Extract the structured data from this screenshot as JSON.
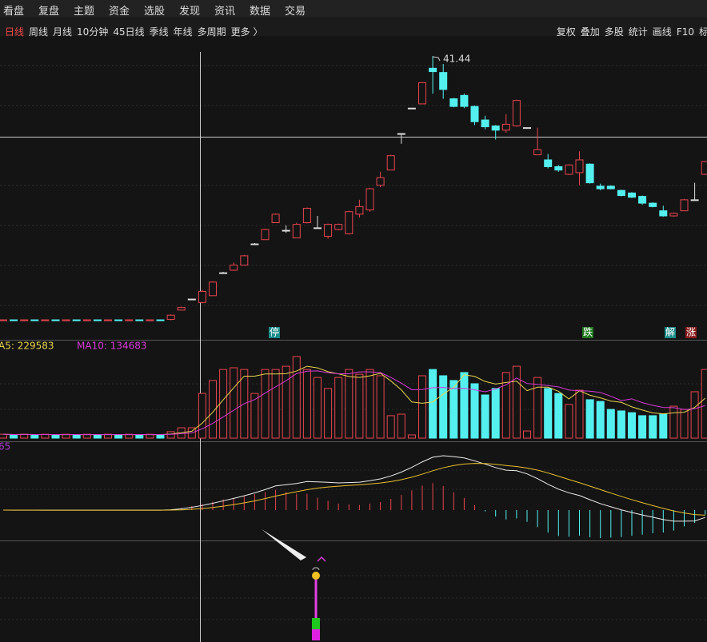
{
  "menu": [
    "看盘",
    "复盘",
    "主题",
    "资金",
    "选股",
    "发现",
    "资讯",
    "数据",
    "交易"
  ],
  "toolbar": {
    "periods": [
      "日线",
      "周线",
      "月线",
      "10分钟",
      "45日线",
      "季线",
      "年线",
      "多周期",
      "更多 〉"
    ],
    "tools": [
      "复权",
      "叠加",
      "多股",
      "统计",
      "画线",
      "F10",
      "标"
    ]
  },
  "chart_data": {
    "type": "candlestick",
    "open": [
      10.25,
      10.35,
      10.25,
      10.35,
      10.25,
      10.35,
      10.25,
      10.35,
      10.25,
      10.35,
      10.25,
      10.35,
      10.25,
      10.35,
      10.25,
      10.35,
      10.4,
      11.5,
      12.8,
      12.4,
      13.2,
      15.9,
      16.2,
      16.8,
      19.3,
      19.8,
      21.8,
      20.9,
      20.0,
      21.8,
      21.2,
      20.2,
      21.0,
      20.5,
      22.8,
      23.3,
      26.2,
      28.0,
      32.3,
      35.3,
      35.8,
      40.0,
      39.5,
      36.4,
      36.8,
      35.5,
      33.9,
      33.2,
      32.7,
      33.2,
      33.0,
      29.8,
      29.2,
      28.4,
      27.5,
      27.7,
      28.7,
      26.1,
      26.1,
      25.6,
      25.3,
      24.9,
      24.1,
      23.2,
      22.6,
      23.2,
      24.5,
      27.5
    ],
    "close": [
      10.35,
      10.25,
      10.35,
      10.25,
      10.35,
      10.25,
      10.35,
      10.25,
      10.35,
      10.25,
      10.35,
      10.25,
      10.35,
      10.25,
      10.35,
      10.25,
      10.9,
      11.8,
      12.8,
      13.7,
      14.8,
      15.9,
      16.8,
      17.9,
      19.3,
      21.0,
      22.8,
      20.9,
      21.6,
      23.5,
      21.2,
      21.6,
      21.6,
      23.1,
      23.7,
      25.8,
      27.1,
      29.7,
      32.3,
      35.3,
      38.3,
      39.6,
      37.5,
      35.5,
      35.5,
      33.7,
      33.1,
      32.7,
      33.4,
      36.2,
      33.0,
      30.4,
      28.4,
      28.0,
      28.6,
      29.2,
      26.5,
      25.8,
      25.8,
      25.0,
      24.8,
      24.1,
      23.7,
      22.6,
      22.9,
      24.5,
      24.5,
      29.0
    ],
    "high": [
      10.35,
      10.35,
      10.35,
      10.35,
      10.35,
      10.35,
      10.35,
      10.35,
      10.35,
      10.35,
      10.35,
      10.35,
      10.35,
      10.35,
      10.35,
      10.35,
      11.0,
      11.9,
      12.8,
      13.9,
      14.9,
      16.0,
      17.1,
      18.0,
      19.4,
      21.1,
      22.9,
      21.5,
      21.8,
      23.6,
      22.6,
      21.7,
      21.7,
      23.2,
      24.5,
      25.9,
      27.8,
      29.8,
      32.3,
      35.3,
      38.4,
      41.44,
      40.5,
      36.5,
      37.0,
      35.6,
      34.4,
      33.3,
      34.6,
      36.3,
      33.0,
      33.0,
      29.9,
      28.6,
      28.7,
      30.2,
      28.8,
      26.4,
      26.2,
      25.7,
      25.4,
      25.0,
      24.2,
      23.8,
      23.0,
      24.6,
      26.5,
      29.1
    ],
    "low": [
      10.25,
      10.25,
      10.25,
      10.25,
      10.25,
      10.25,
      10.25,
      10.25,
      10.25,
      10.25,
      10.25,
      10.25,
      10.25,
      10.25,
      10.25,
      10.25,
      10.3,
      11.5,
      12.8,
      12.3,
      13.2,
      15.9,
      16.1,
      16.8,
      19.3,
      19.8,
      21.8,
      20.6,
      20.0,
      21.7,
      21.1,
      19.9,
      20.9,
      20.4,
      22.4,
      23.1,
      26.0,
      28.0,
      31.1,
      35.3,
      35.8,
      37.0,
      36.4,
      35.4,
      35.3,
      33.3,
      32.8,
      31.6,
      32.4,
      33.1,
      33.0,
      29.8,
      28.2,
      27.8,
      27.4,
      26.2,
      26.4,
      25.6,
      25.7,
      24.9,
      24.7,
      23.9,
      23.6,
      22.5,
      22.5,
      23.2,
      24.4,
      27.4
    ],
    "ylim": [
      8,
      43.8
    ],
    "high_label": "41.44",
    "signals": [
      "停",
      "跌",
      "解",
      "涨"
    ],
    "volume": {
      "values": [
        18000,
        15000,
        18000,
        15000,
        18000,
        15000,
        18000,
        15000,
        18000,
        15000,
        18000,
        15000,
        18000,
        15000,
        18000,
        15000,
        30000,
        48000,
        48000,
        207000,
        267000,
        318000,
        326000,
        318000,
        207000,
        318000,
        318000,
        333000,
        378000,
        318000,
        281000,
        230000,
        281000,
        318000,
        296000,
        318000,
        289000,
        104000,
        111000,
        15000,
        289000,
        318000,
        289000,
        267000,
        304000,
        252000,
        200000,
        230000,
        304000,
        333000,
        33000,
        281000,
        230000,
        207000,
        156000,
        222000,
        178000,
        170000,
        133000,
        126000,
        118000,
        104000,
        104000,
        111000,
        148000,
        133000,
        215000,
        318000
      ],
      "ylim": [
        0,
        400000
      ],
      "ma5_label": "A5: 229583",
      "ma10_label": "MA10: 134683"
    },
    "macd_label": "65"
  }
}
